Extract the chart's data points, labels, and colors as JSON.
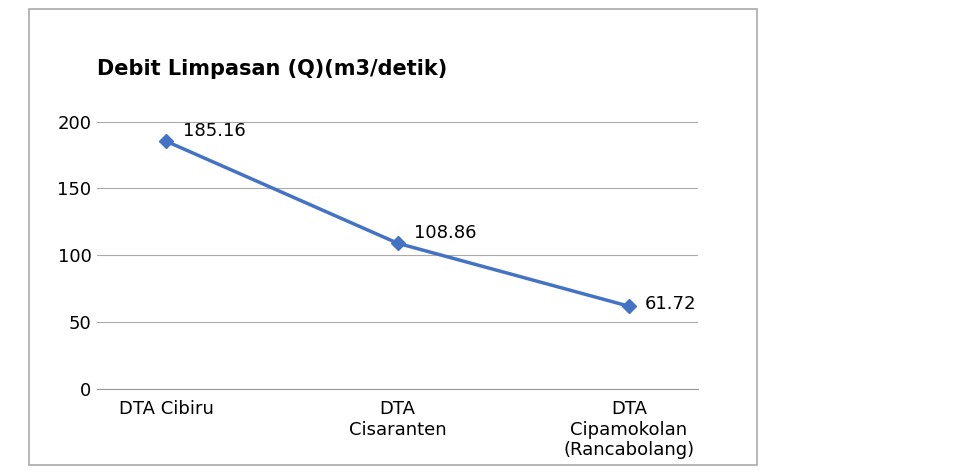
{
  "title": "Debit Limpasan (Q)(m3/detik)",
  "categories": [
    "DTA Cibiru",
    "DTA\nCisaranten",
    "DTA\nCipamokolan\n(Rancabolang)"
  ],
  "values": [
    185.16,
    108.86,
    61.72
  ],
  "labels": [
    "185.16",
    "108.86",
    "61.72"
  ],
  "line_color": "#4472C4",
  "marker_style": "D",
  "marker_size": 7,
  "line_width": 2.5,
  "ylim": [
    0,
    220
  ],
  "yticks": [
    0,
    50,
    100,
    150,
    200
  ],
  "title_fontsize": 15,
  "tick_fontsize": 13,
  "label_fontsize": 13,
  "background_color": "#ffffff",
  "plot_bg_color": "#ffffff",
  "grid_color": "#aaaaaa",
  "title_fontweight": "bold",
  "fig_width": 9.7,
  "fig_height": 4.74,
  "dpi": 100
}
